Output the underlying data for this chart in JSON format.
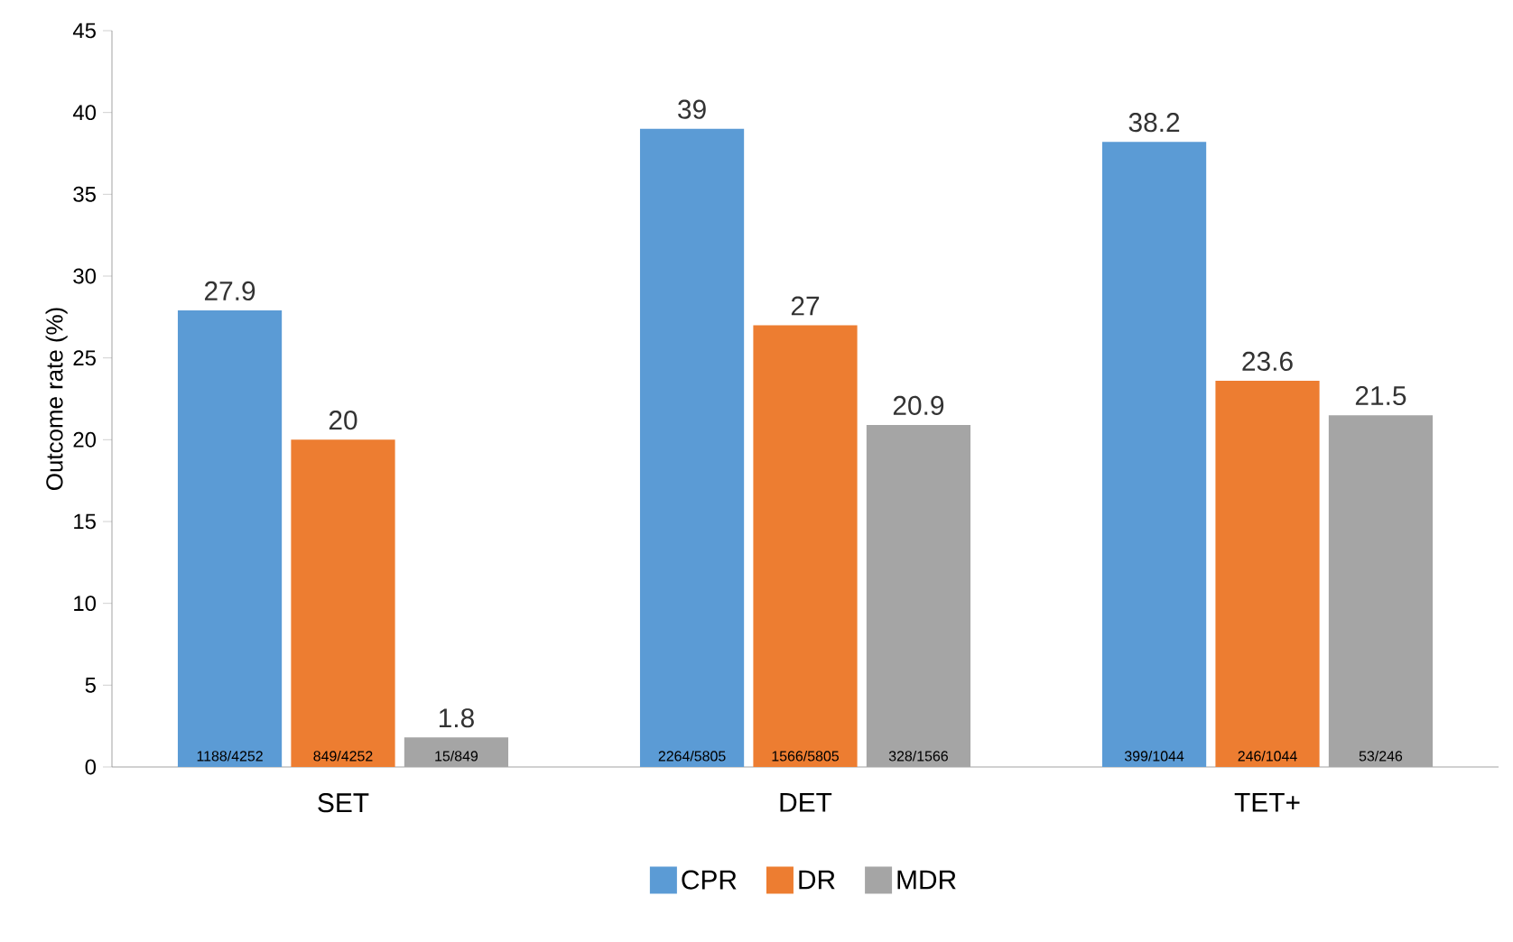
{
  "chart_data": {
    "type": "bar",
    "ylabel": "Outcome rate (%)",
    "categories": [
      "SET",
      "DET",
      "TET+"
    ],
    "series": [
      {
        "name": "CPR",
        "color": "#5b9bd5",
        "values": [
          27.9,
          39,
          38.2
        ]
      },
      {
        "name": "DR",
        "color": "#ed7d31",
        "values": [
          20,
          27,
          23.6
        ]
      },
      {
        "name": "MDR",
        "color": "#a5a5a5",
        "values": [
          1.8,
          20.9,
          21.5
        ]
      }
    ],
    "ylim": [
      0,
      45
    ],
    "yticks": [
      0,
      5,
      10,
      15,
      20,
      25,
      30,
      35,
      40,
      45
    ],
    "data_labels": true,
    "grid": false,
    "legend": "bottom",
    "annotations": [
      "1188/4252",
      "849/4252",
      "15/849",
      "2264/5805",
      "1566/5805",
      "328/1566",
      "399/1044",
      "246/1044",
      "53/246"
    ]
  }
}
